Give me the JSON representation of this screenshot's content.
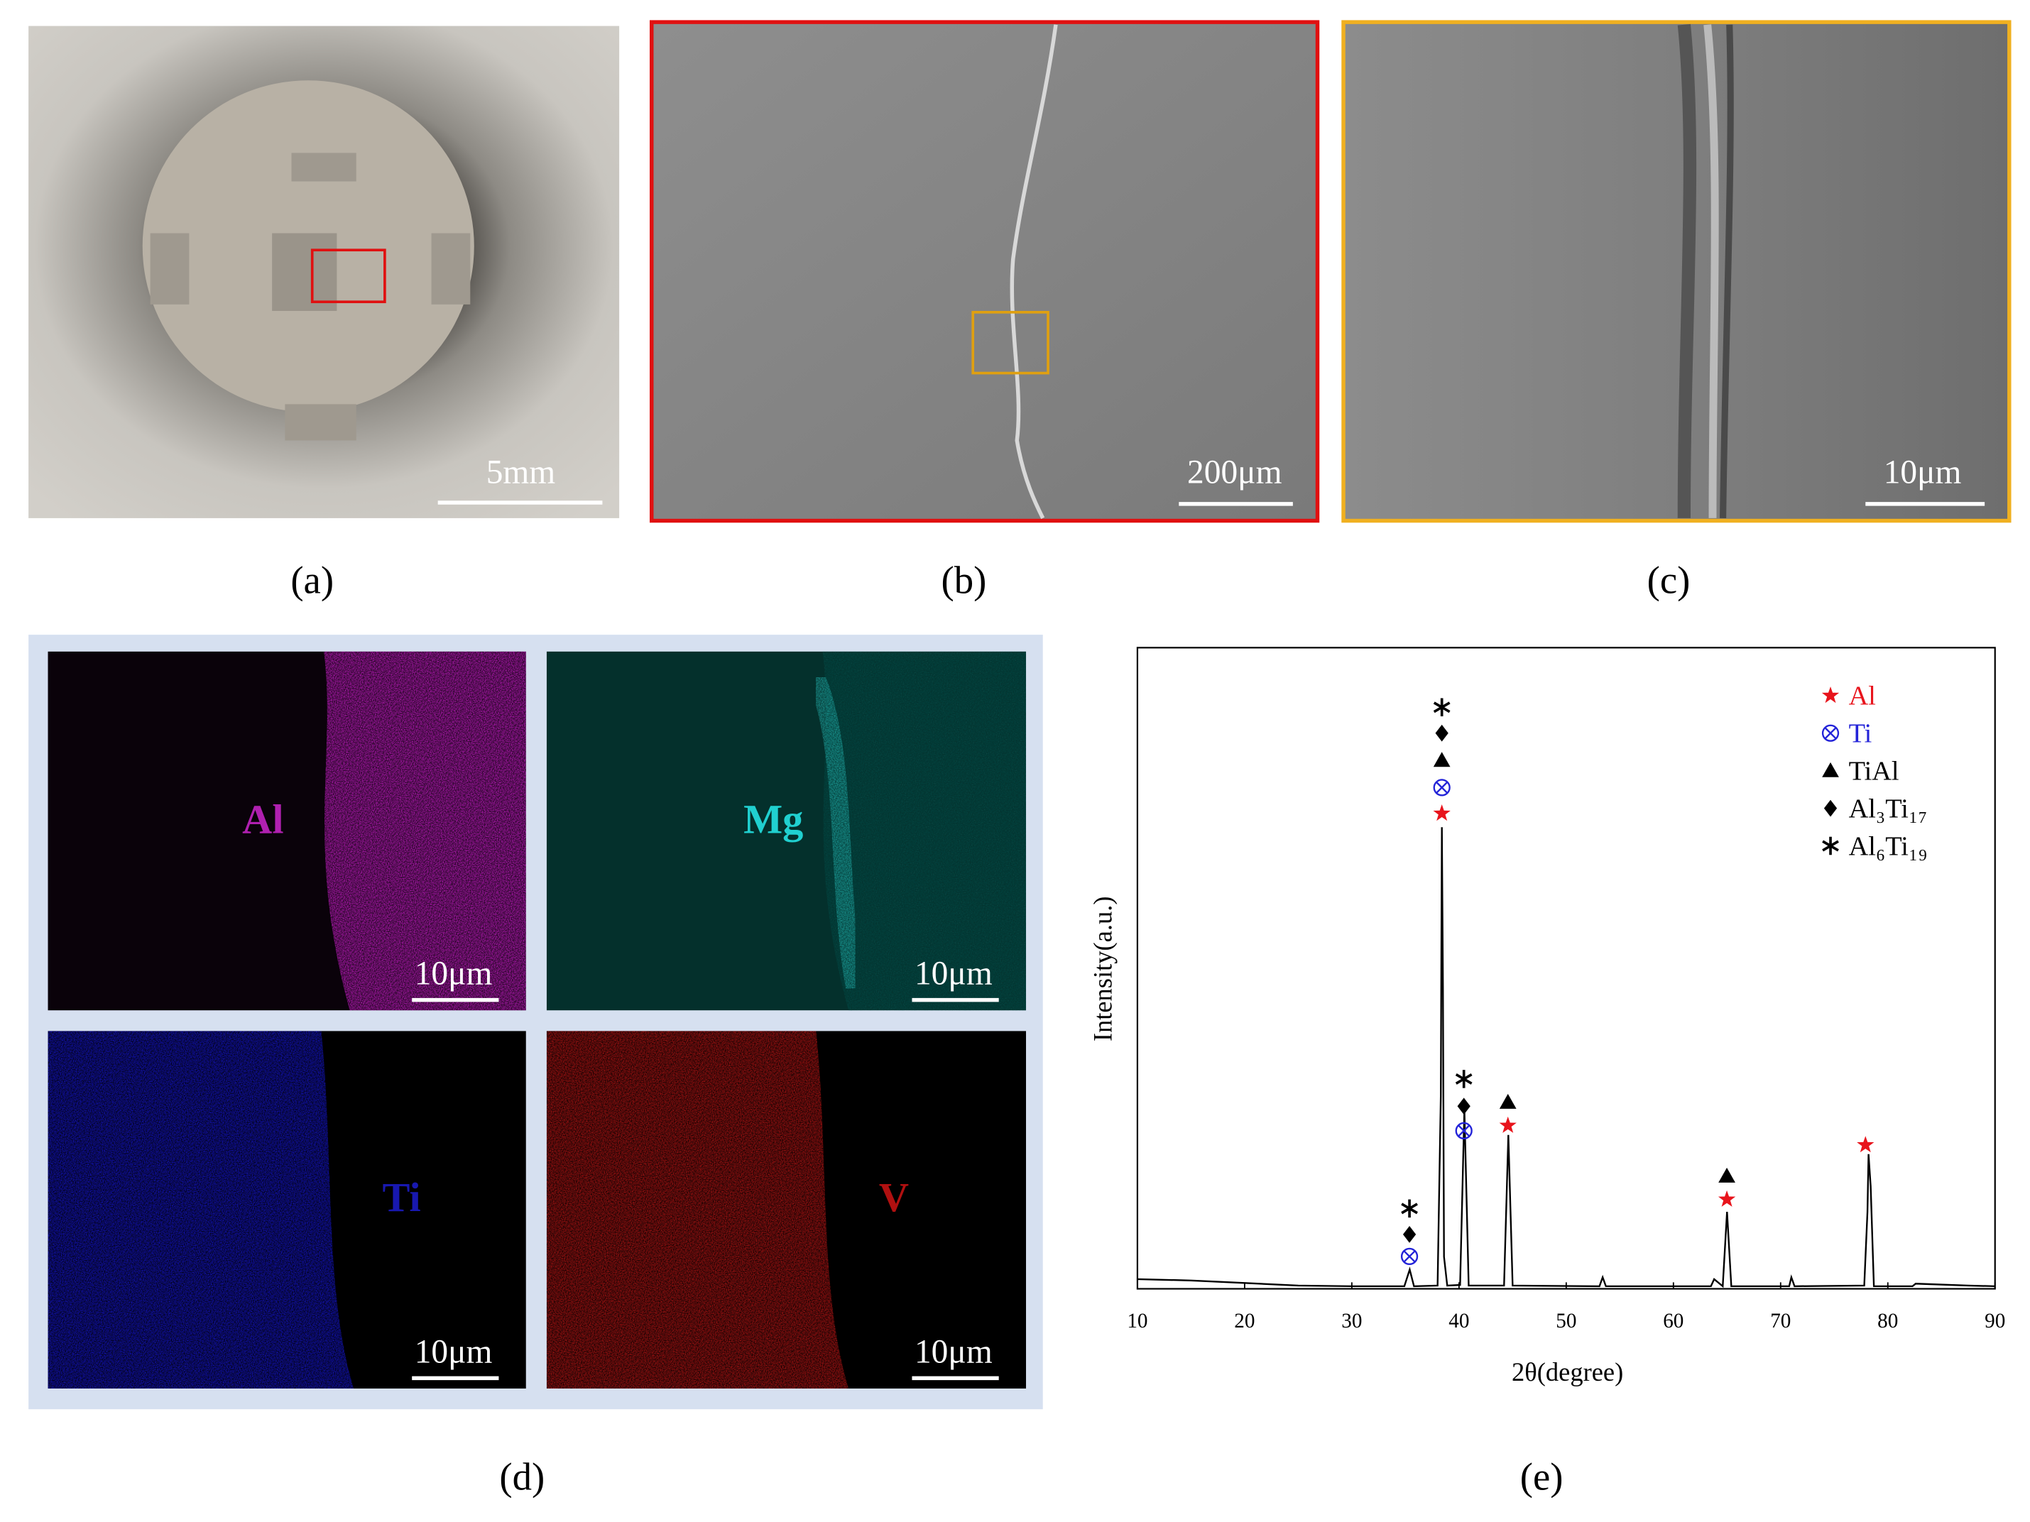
{
  "panels": {
    "a": {
      "label": "(a)",
      "scale_bar": "5mm"
    },
    "b": {
      "label": "(b)",
      "scale_bar": "200μm"
    },
    "c": {
      "label": "(c)",
      "scale_bar": "10μm"
    },
    "d": {
      "label": "(d)",
      "maps": [
        {
          "element": "Al",
          "scale_bar": "10μm"
        },
        {
          "element": "Mg",
          "scale_bar": "10μm"
        },
        {
          "element": "Ti",
          "scale_bar": "10μm"
        },
        {
          "element": "V",
          "scale_bar": "10μm"
        }
      ]
    },
    "e": {
      "label": "(e)"
    }
  },
  "chart_data": {
    "type": "line",
    "x_label": "2θ(degree)",
    "y_label": "Intensity(a.u.)",
    "x": [
      10,
      15,
      20,
      25,
      30,
      34.9,
      35.4,
      35.8,
      38.0,
      38.3,
      38.4,
      38.5,
      38.6,
      38.9,
      40.1,
      40.5,
      40.9,
      44.2,
      44.6,
      45.0,
      53.1,
      53.4,
      53.7,
      63.5,
      63.8,
      64.6,
      65.0,
      65.4,
      70.8,
      71.0,
      71.3,
      77.8,
      78.1,
      78.2,
      78.4,
      78.7,
      82.3,
      82.6,
      87.5,
      90
    ],
    "values": [
      1.5,
      1.3,
      0.9,
      0.5,
      0.4,
      0.4,
      3,
      0.4,
      0.5,
      30,
      72,
      47,
      5,
      0.5,
      0.6,
      28,
      0.5,
      0.5,
      24,
      0.5,
      0.4,
      1.8,
      0.4,
      0.4,
      1.5,
      0.4,
      12,
      0.4,
      0.4,
      1.8,
      0.4,
      0.5,
      12,
      21,
      16,
      0.4,
      0.4,
      0.8,
      0.5,
      0.4
    ],
    "xlim": [
      10,
      90
    ],
    "xticks": [
      10,
      20,
      30,
      40,
      50,
      60,
      70,
      80,
      90
    ],
    "ylim": [
      0,
      100
    ],
    "color": "#000000",
    "legend": [
      "Al",
      "Ti",
      "TiAl",
      "Al₃Ti₁₇",
      "Al₆Ti₁₉"
    ],
    "legend_colors": [
      "#e8141c",
      "#2323d8",
      "#000000",
      "#000000",
      "#000000"
    ]
  }
}
